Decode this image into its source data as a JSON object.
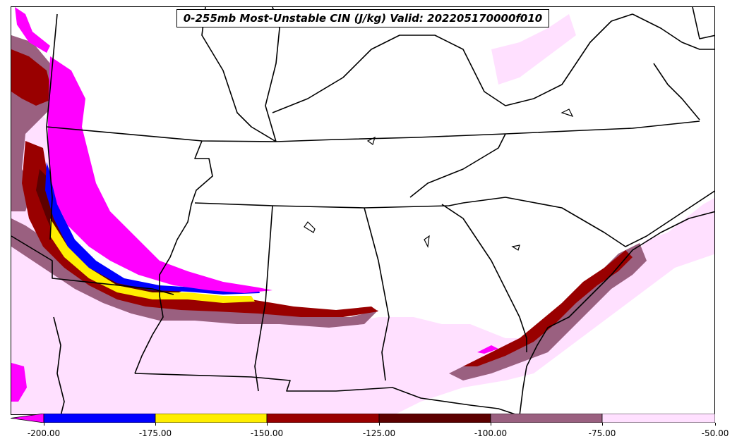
{
  "title": "0-255mb Most-Unstable CIN (J/kg) Valid: 202205170000f010",
  "colors": {
    "magenta": "#ff00ff",
    "blue": "#0000ff",
    "yellow": "#ffee00",
    "darkred": "#990000",
    "maroon": "#5c0000",
    "mauve": "#9a6080",
    "pink": "#ffe0ff",
    "outline": "#000000"
  },
  "colorbar": {
    "tick_labels": [
      "-200.00",
      "-175.00",
      "-150.00",
      "-125.00",
      "-100.00",
      "-75.00",
      "-50.00"
    ],
    "bins": [
      "magenta",
      "blue",
      "yellow",
      "darkred",
      "maroon",
      "mauve",
      "pink"
    ]
  }
}
